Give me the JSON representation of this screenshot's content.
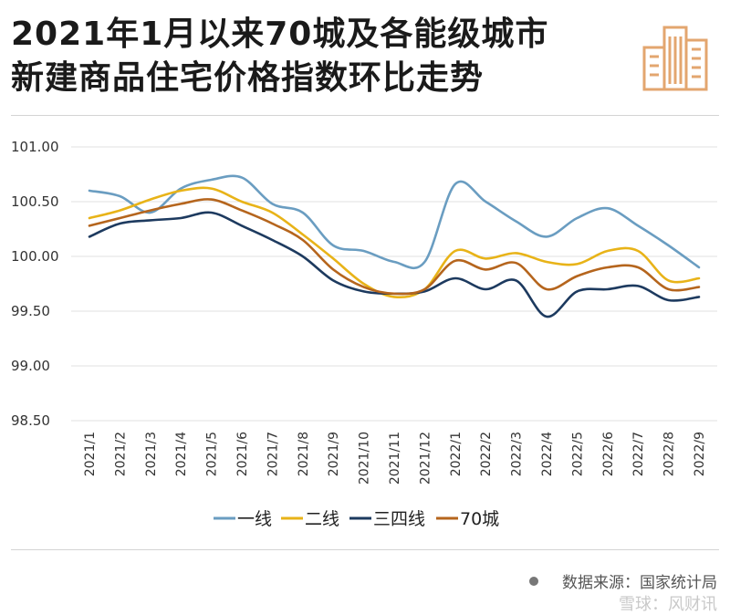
{
  "title": {
    "line1": "2021年1月以来70城及各能级城市",
    "line2": "新建商品住宅价格指数环比走势"
  },
  "source": "数据来源：国家统计局",
  "watermark": "雪球：风财讯",
  "chart_data": {
    "type": "line",
    "categories": [
      "2021/1",
      "2021/2",
      "2021/3",
      "2021/4",
      "2021/5",
      "2021/6",
      "2021/7",
      "2021/8",
      "2021/9",
      "2021/10",
      "2021/11",
      "2021/12",
      "2022/1",
      "2022/2",
      "2022/3",
      "2022/4",
      "2022/5",
      "2022/6",
      "2022/7",
      "2022/8",
      "2022/9"
    ],
    "yticks": [
      "101.00",
      "100.50",
      "100.00",
      "99.50",
      "99.00",
      "98.50"
    ],
    "ylim": [
      98.5,
      101.0
    ],
    "grid": true,
    "legend_position": "bottom",
    "series": [
      {
        "name": "一线",
        "color": "#6a9dc1",
        "values": [
          100.6,
          100.55,
          100.4,
          100.62,
          100.7,
          100.72,
          100.48,
          100.4,
          100.1,
          100.05,
          99.95,
          99.95,
          100.66,
          100.5,
          100.32,
          100.18,
          100.35,
          100.44,
          100.28,
          100.1,
          99.9
        ]
      },
      {
        "name": "二线",
        "color": "#e8b318",
        "values": [
          100.35,
          100.42,
          100.52,
          100.6,
          100.62,
          100.5,
          100.4,
          100.2,
          99.98,
          99.75,
          99.63,
          99.7,
          100.05,
          99.98,
          100.03,
          99.95,
          99.93,
          100.05,
          100.05,
          99.78,
          99.8
        ]
      },
      {
        "name": "三四线",
        "color": "#1d3a5f",
        "values": [
          100.18,
          100.3,
          100.33,
          100.35,
          100.4,
          100.28,
          100.15,
          100.0,
          99.78,
          99.68,
          99.66,
          99.68,
          99.8,
          99.7,
          99.78,
          99.45,
          99.68,
          99.7,
          99.73,
          99.6,
          99.63
        ]
      },
      {
        "name": "70城",
        "color": "#b5651d",
        "values": [
          100.28,
          100.35,
          100.42,
          100.48,
          100.52,
          100.42,
          100.3,
          100.15,
          99.88,
          99.72,
          99.66,
          99.7,
          99.96,
          99.88,
          99.94,
          99.7,
          99.82,
          99.9,
          99.9,
          99.7,
          99.72
        ]
      }
    ]
  }
}
